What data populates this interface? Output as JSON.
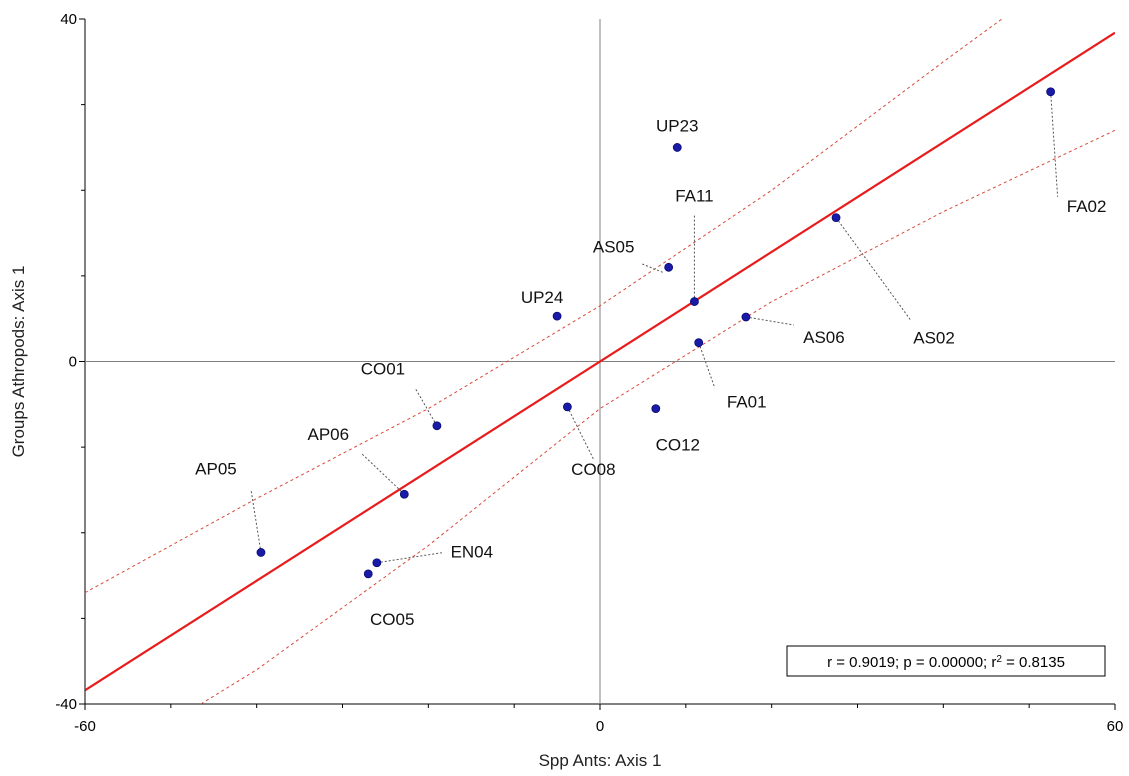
{
  "chart_data": {
    "type": "scatter",
    "title": "",
    "xlabel": "Spp Ants: Axis 1",
    "ylabel": "Groups Athropods: Axis 1",
    "xlim": [
      -60,
      60
    ],
    "ylim": [
      -40,
      40
    ],
    "x_ticks": [
      -60,
      0,
      60
    ],
    "y_ticks": [
      40,
      0,
      -40
    ],
    "zero_lines": true,
    "grid": false,
    "point_color": "#1a1aa8",
    "fit_color": "#e81c1c",
    "ci_color": "#d84a3a",
    "points": [
      {
        "label": "UP23",
        "x": 9,
        "y": 25
      },
      {
        "label": "FA02",
        "x": 52.5,
        "y": 31.5
      },
      {
        "label": "FA11",
        "x": 11,
        "y": 7
      },
      {
        "label": "AS05",
        "x": 8,
        "y": 11
      },
      {
        "label": "UP24",
        "x": -5,
        "y": 5.3
      },
      {
        "label": "AS06",
        "x": 17,
        "y": 5.2
      },
      {
        "label": "AS02",
        "x": 27.5,
        "y": 16.8
      },
      {
        "label": "FA01",
        "x": 11.5,
        "y": 2.2
      },
      {
        "label": "CO01",
        "x": -19,
        "y": -7.5
      },
      {
        "label": "CO08",
        "x": -3.8,
        "y": -5.3
      },
      {
        "label": "CO12",
        "x": 6.5,
        "y": -5.5
      },
      {
        "label": "AP06",
        "x": -22.8,
        "y": -15.5
      },
      {
        "label": "AP05",
        "x": -39.5,
        "y": -22.3
      },
      {
        "label": "EN04",
        "x": -26,
        "y": -23.5
      },
      {
        "label": "CO05",
        "x": -27,
        "y": -24.8
      }
    ],
    "fit_line": {
      "slope": 0.64,
      "intercept": 0
    },
    "confidence_band": [
      {
        "name": "upper",
        "x": [
          -60,
          -40,
          -20,
          0,
          20,
          40,
          47.5
        ],
        "y": [
          -27,
          -16,
          -5.5,
          6.5,
          20,
          35,
          40.5
        ]
      },
      {
        "name": "lower",
        "x": [
          -46.5,
          -40,
          -20,
          0,
          20,
          40,
          60
        ],
        "y": [
          -40,
          -36,
          -21.5,
          -5.5,
          7,
          17.5,
          27
        ]
      }
    ],
    "stats_label": {
      "prefix": "r = 0.9019; p = 0.00000; r",
      "sup": "2",
      "suffix": " = 0.8135"
    }
  }
}
